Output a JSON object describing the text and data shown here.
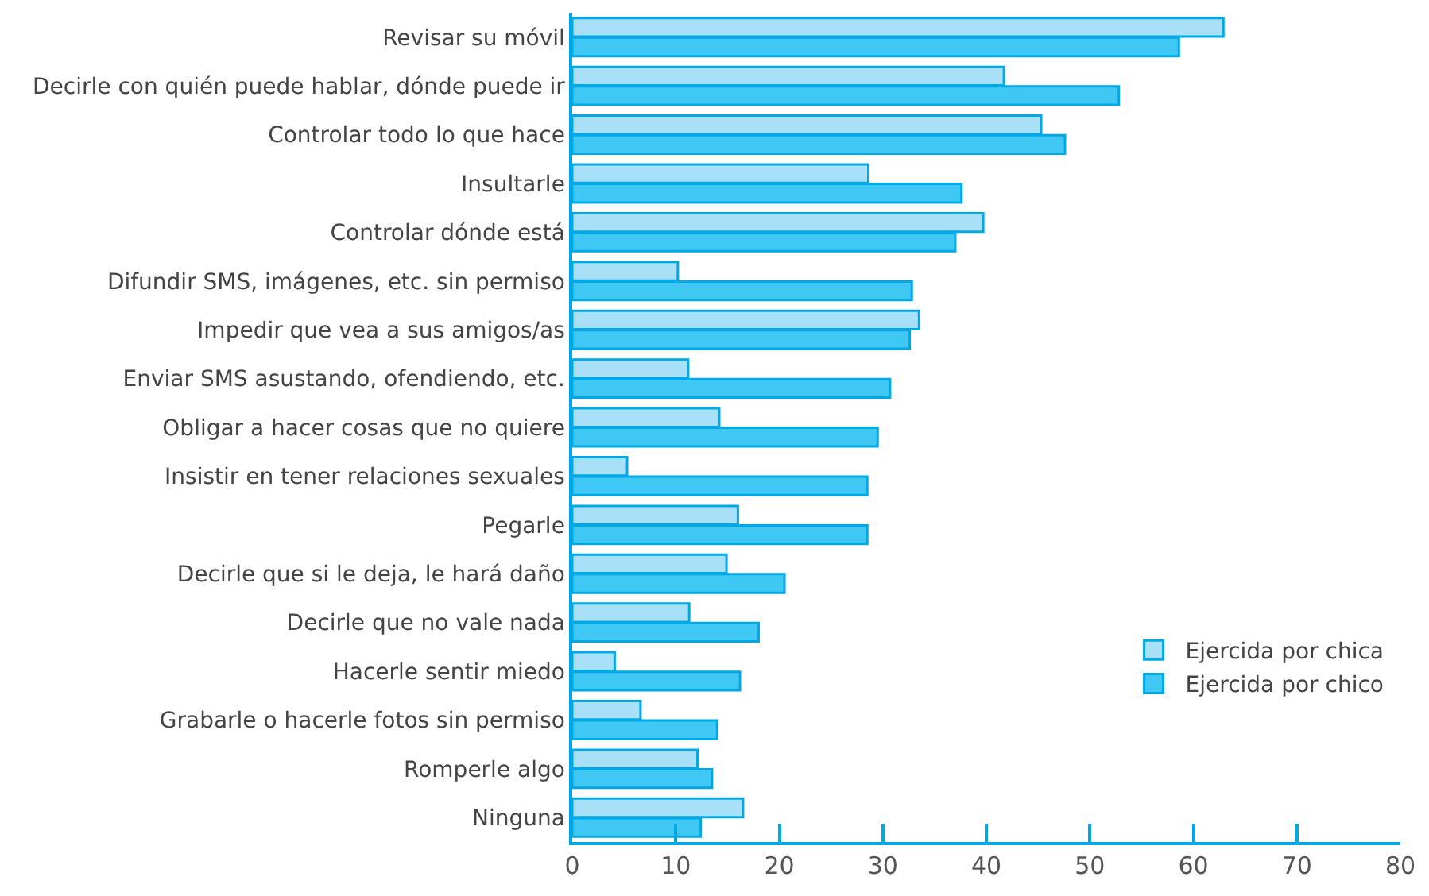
{
  "chart_data": {
    "type": "bar",
    "orientation": "horizontal",
    "categories": [
      "Revisar su móvil",
      "Decirle con quién puede hablar, dónde puede ir",
      "Controlar todo lo que hace",
      "Insultarle",
      "Controlar dónde está",
      "Difundir SMS, imágenes, etc. sin permiso",
      "Impedir que vea a sus amigos/as",
      "Enviar SMS asustando, ofendiendo, etc.",
      "Obligar a hacer cosas que no quiere",
      "Insistir en tener relaciones sexuales",
      "Pegarle",
      "Decirle que si le deja, le hará daño",
      "Decirle que no vale nada",
      "Hacerle sentir miedo",
      "Grabarle o hacerle fotos sin permiso",
      "Romperle algo",
      "Ninguna"
    ],
    "series": [
      {
        "name": "Ejercida por chica",
        "color": "#a8e0f8",
        "values": [
          62.9,
          41.7,
          45.3,
          28.6,
          39.7,
          10.2,
          33.5,
          11.2,
          14.2,
          5.3,
          16.0,
          14.9,
          11.3,
          4.1,
          6.6,
          12.1,
          16.5
        ]
      },
      {
        "name": "Ejercida por chico",
        "color": "#40c8f4",
        "values": [
          58.6,
          52.8,
          47.6,
          37.6,
          37.0,
          32.8,
          32.6,
          30.7,
          29.5,
          28.5,
          28.5,
          20.5,
          18.0,
          16.2,
          14.0,
          13.5,
          12.4
        ]
      }
    ],
    "xlim": [
      0,
      80
    ],
    "xticks": [
      0,
      10,
      20,
      30,
      40,
      50,
      60,
      70,
      80
    ],
    "legend": "bottom right"
  }
}
